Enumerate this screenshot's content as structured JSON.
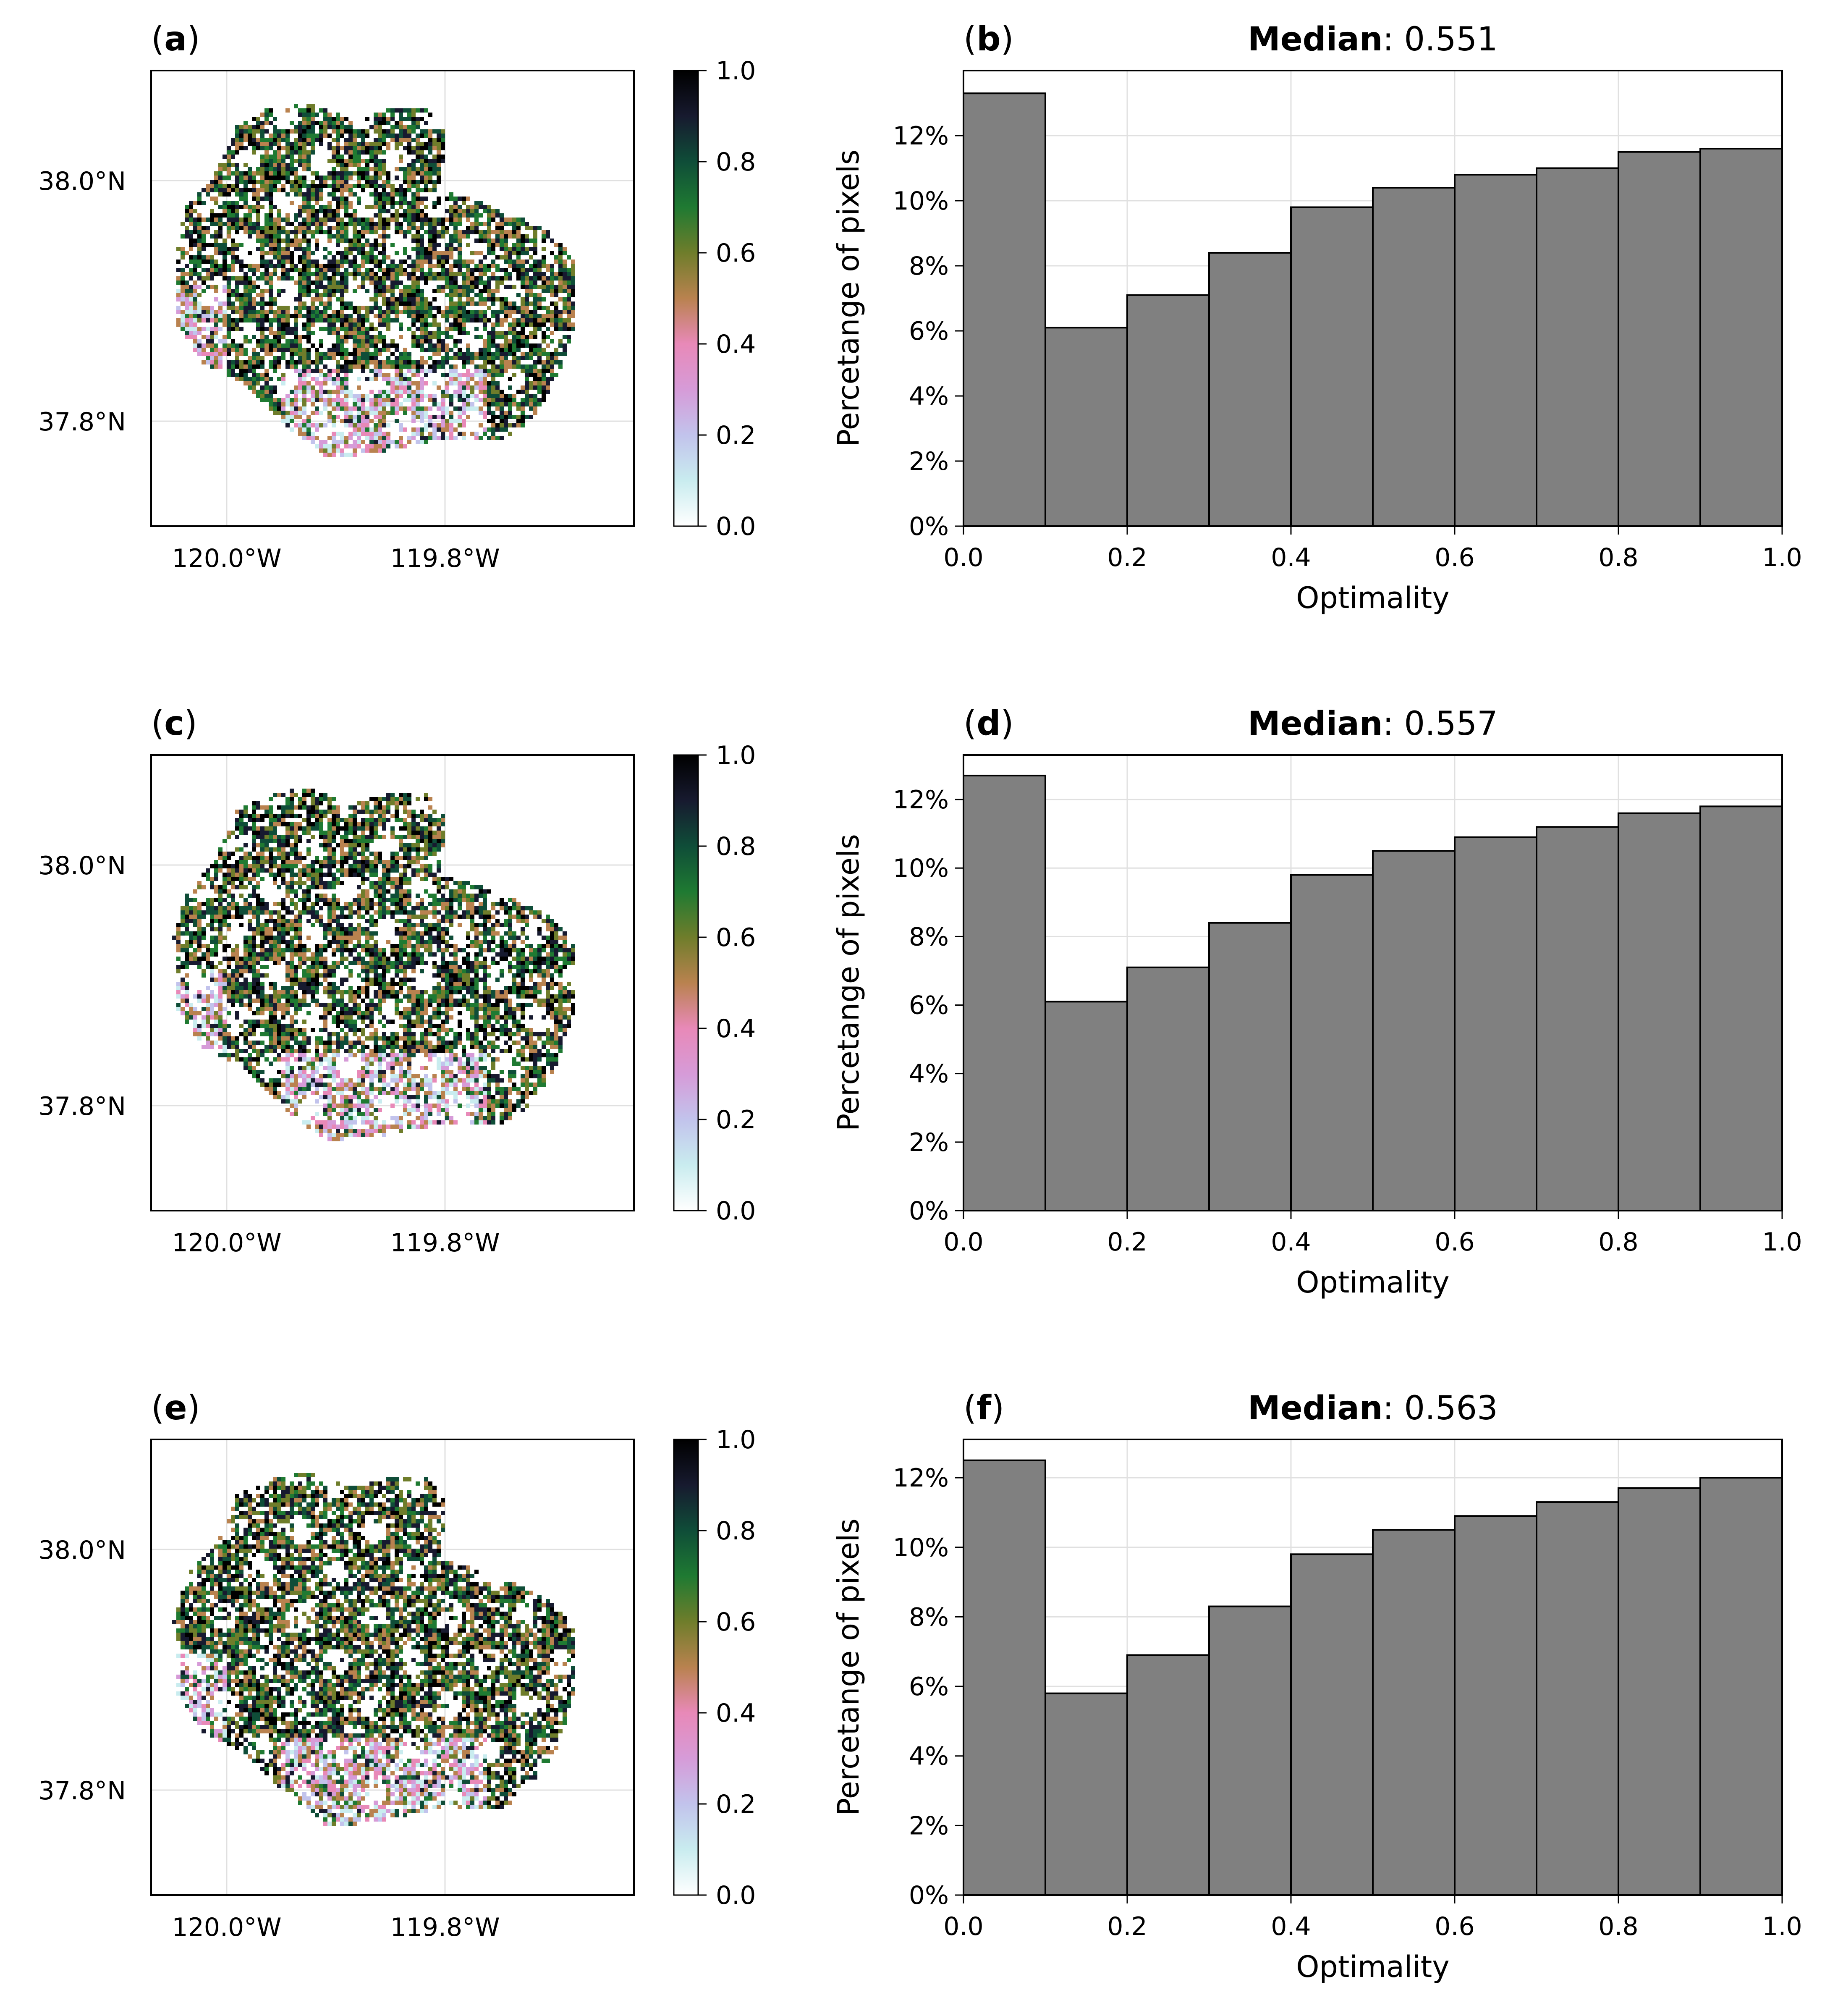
{
  "figure": {
    "colors": {
      "bar_fill": "#808080",
      "bar_edge": "#000000",
      "grid": "#e0e0e0",
      "colormap": [
        "#ffffff",
        "#c9ecef",
        "#c2c3ec",
        "#d69bd8",
        "#e889b8",
        "#b9824f",
        "#6f7d2b",
        "#1f7a32",
        "#0f4d38",
        "#171a2f",
        "#000000"
      ]
    },
    "map_panels": [
      {
        "label_letter": "a",
        "lat_ticks": [
          "38.0°N",
          "37.8°N"
        ],
        "lon_ticks": [
          "120.0°W",
          "119.8°W"
        ],
        "colorbar_ticks": [
          "1.0",
          "0.8",
          "0.6",
          "0.4",
          "0.2",
          "0.0"
        ]
      },
      {
        "label_letter": "c",
        "lat_ticks": [
          "38.0°N",
          "37.8°N"
        ],
        "lon_ticks": [
          "120.0°W",
          "119.8°W"
        ],
        "colorbar_ticks": [
          "1.0",
          "0.8",
          "0.6",
          "0.4",
          "0.2",
          "0.0"
        ]
      },
      {
        "label_letter": "e",
        "lat_ticks": [
          "38.0°N",
          "37.8°N"
        ],
        "lon_ticks": [
          "120.0°W",
          "119.8°W"
        ],
        "colorbar_ticks": [
          "1.0",
          "0.8",
          "0.6",
          "0.4",
          "0.2",
          "0.0"
        ]
      }
    ]
  },
  "chart_data": [
    {
      "type": "bar",
      "panel": "b",
      "label_letter": "b",
      "title_key": "Median",
      "title_value": ": 0.551",
      "xlabel": "Optimality",
      "ylabel": "Percetange of pixels",
      "bin_edges": [
        0.0,
        0.1,
        0.2,
        0.3,
        0.4,
        0.5,
        0.6,
        0.7,
        0.8,
        0.9,
        1.0
      ],
      "values": [
        13.3,
        6.1,
        7.1,
        8.4,
        9.8,
        10.4,
        10.8,
        11.0,
        11.5,
        11.6
      ],
      "xlim": [
        0,
        1
      ],
      "ylim": [
        0,
        14.0
      ],
      "x_ticks": [
        0.0,
        0.2,
        0.4,
        0.6,
        0.8,
        1.0
      ],
      "x_tick_labels": [
        "0.0",
        "0.2",
        "0.4",
        "0.6",
        "0.8",
        "1.0"
      ],
      "y_ticks": [
        0,
        2,
        4,
        6,
        8,
        10,
        12
      ],
      "y_tick_labels": [
        "0%",
        "2%",
        "4%",
        "6%",
        "8%",
        "10%",
        "12%"
      ],
      "grid": true
    },
    {
      "type": "bar",
      "panel": "d",
      "label_letter": "d",
      "title_key": "Median",
      "title_value": ": 0.557",
      "xlabel": "Optimality",
      "ylabel": "Percetange of pixels",
      "bin_edges": [
        0.0,
        0.1,
        0.2,
        0.3,
        0.4,
        0.5,
        0.6,
        0.7,
        0.8,
        0.9,
        1.0
      ],
      "values": [
        12.7,
        6.1,
        7.1,
        8.4,
        9.8,
        10.5,
        10.9,
        11.2,
        11.6,
        11.8
      ],
      "xlim": [
        0,
        1
      ],
      "ylim": [
        0,
        13.3
      ],
      "x_ticks": [
        0.0,
        0.2,
        0.4,
        0.6,
        0.8,
        1.0
      ],
      "x_tick_labels": [
        "0.0",
        "0.2",
        "0.4",
        "0.6",
        "0.8",
        "1.0"
      ],
      "y_ticks": [
        0,
        2,
        4,
        6,
        8,
        10,
        12
      ],
      "y_tick_labels": [
        "0%",
        "2%",
        "4%",
        "6%",
        "8%",
        "10%",
        "12%"
      ],
      "grid": true
    },
    {
      "type": "bar",
      "panel": "f",
      "label_letter": "f",
      "title_key": "Median",
      "title_value": ": 0.563",
      "xlabel": "Optimality",
      "ylabel": "Percetange of pixels",
      "bin_edges": [
        0.0,
        0.1,
        0.2,
        0.3,
        0.4,
        0.5,
        0.6,
        0.7,
        0.8,
        0.9,
        1.0
      ],
      "values": [
        12.5,
        5.8,
        6.9,
        8.3,
        9.8,
        10.5,
        10.9,
        11.3,
        11.7,
        12.0
      ],
      "xlim": [
        0,
        1
      ],
      "ylim": [
        0,
        13.1
      ],
      "x_ticks": [
        0.0,
        0.2,
        0.4,
        0.6,
        0.8,
        1.0
      ],
      "x_tick_labels": [
        "0.0",
        "0.2",
        "0.4",
        "0.6",
        "0.8",
        "1.0"
      ],
      "y_ticks": [
        0,
        2,
        4,
        6,
        8,
        10,
        12
      ],
      "y_tick_labels": [
        "0%",
        "2%",
        "4%",
        "6%",
        "8%",
        "10%",
        "12%"
      ],
      "grid": true
    }
  ]
}
